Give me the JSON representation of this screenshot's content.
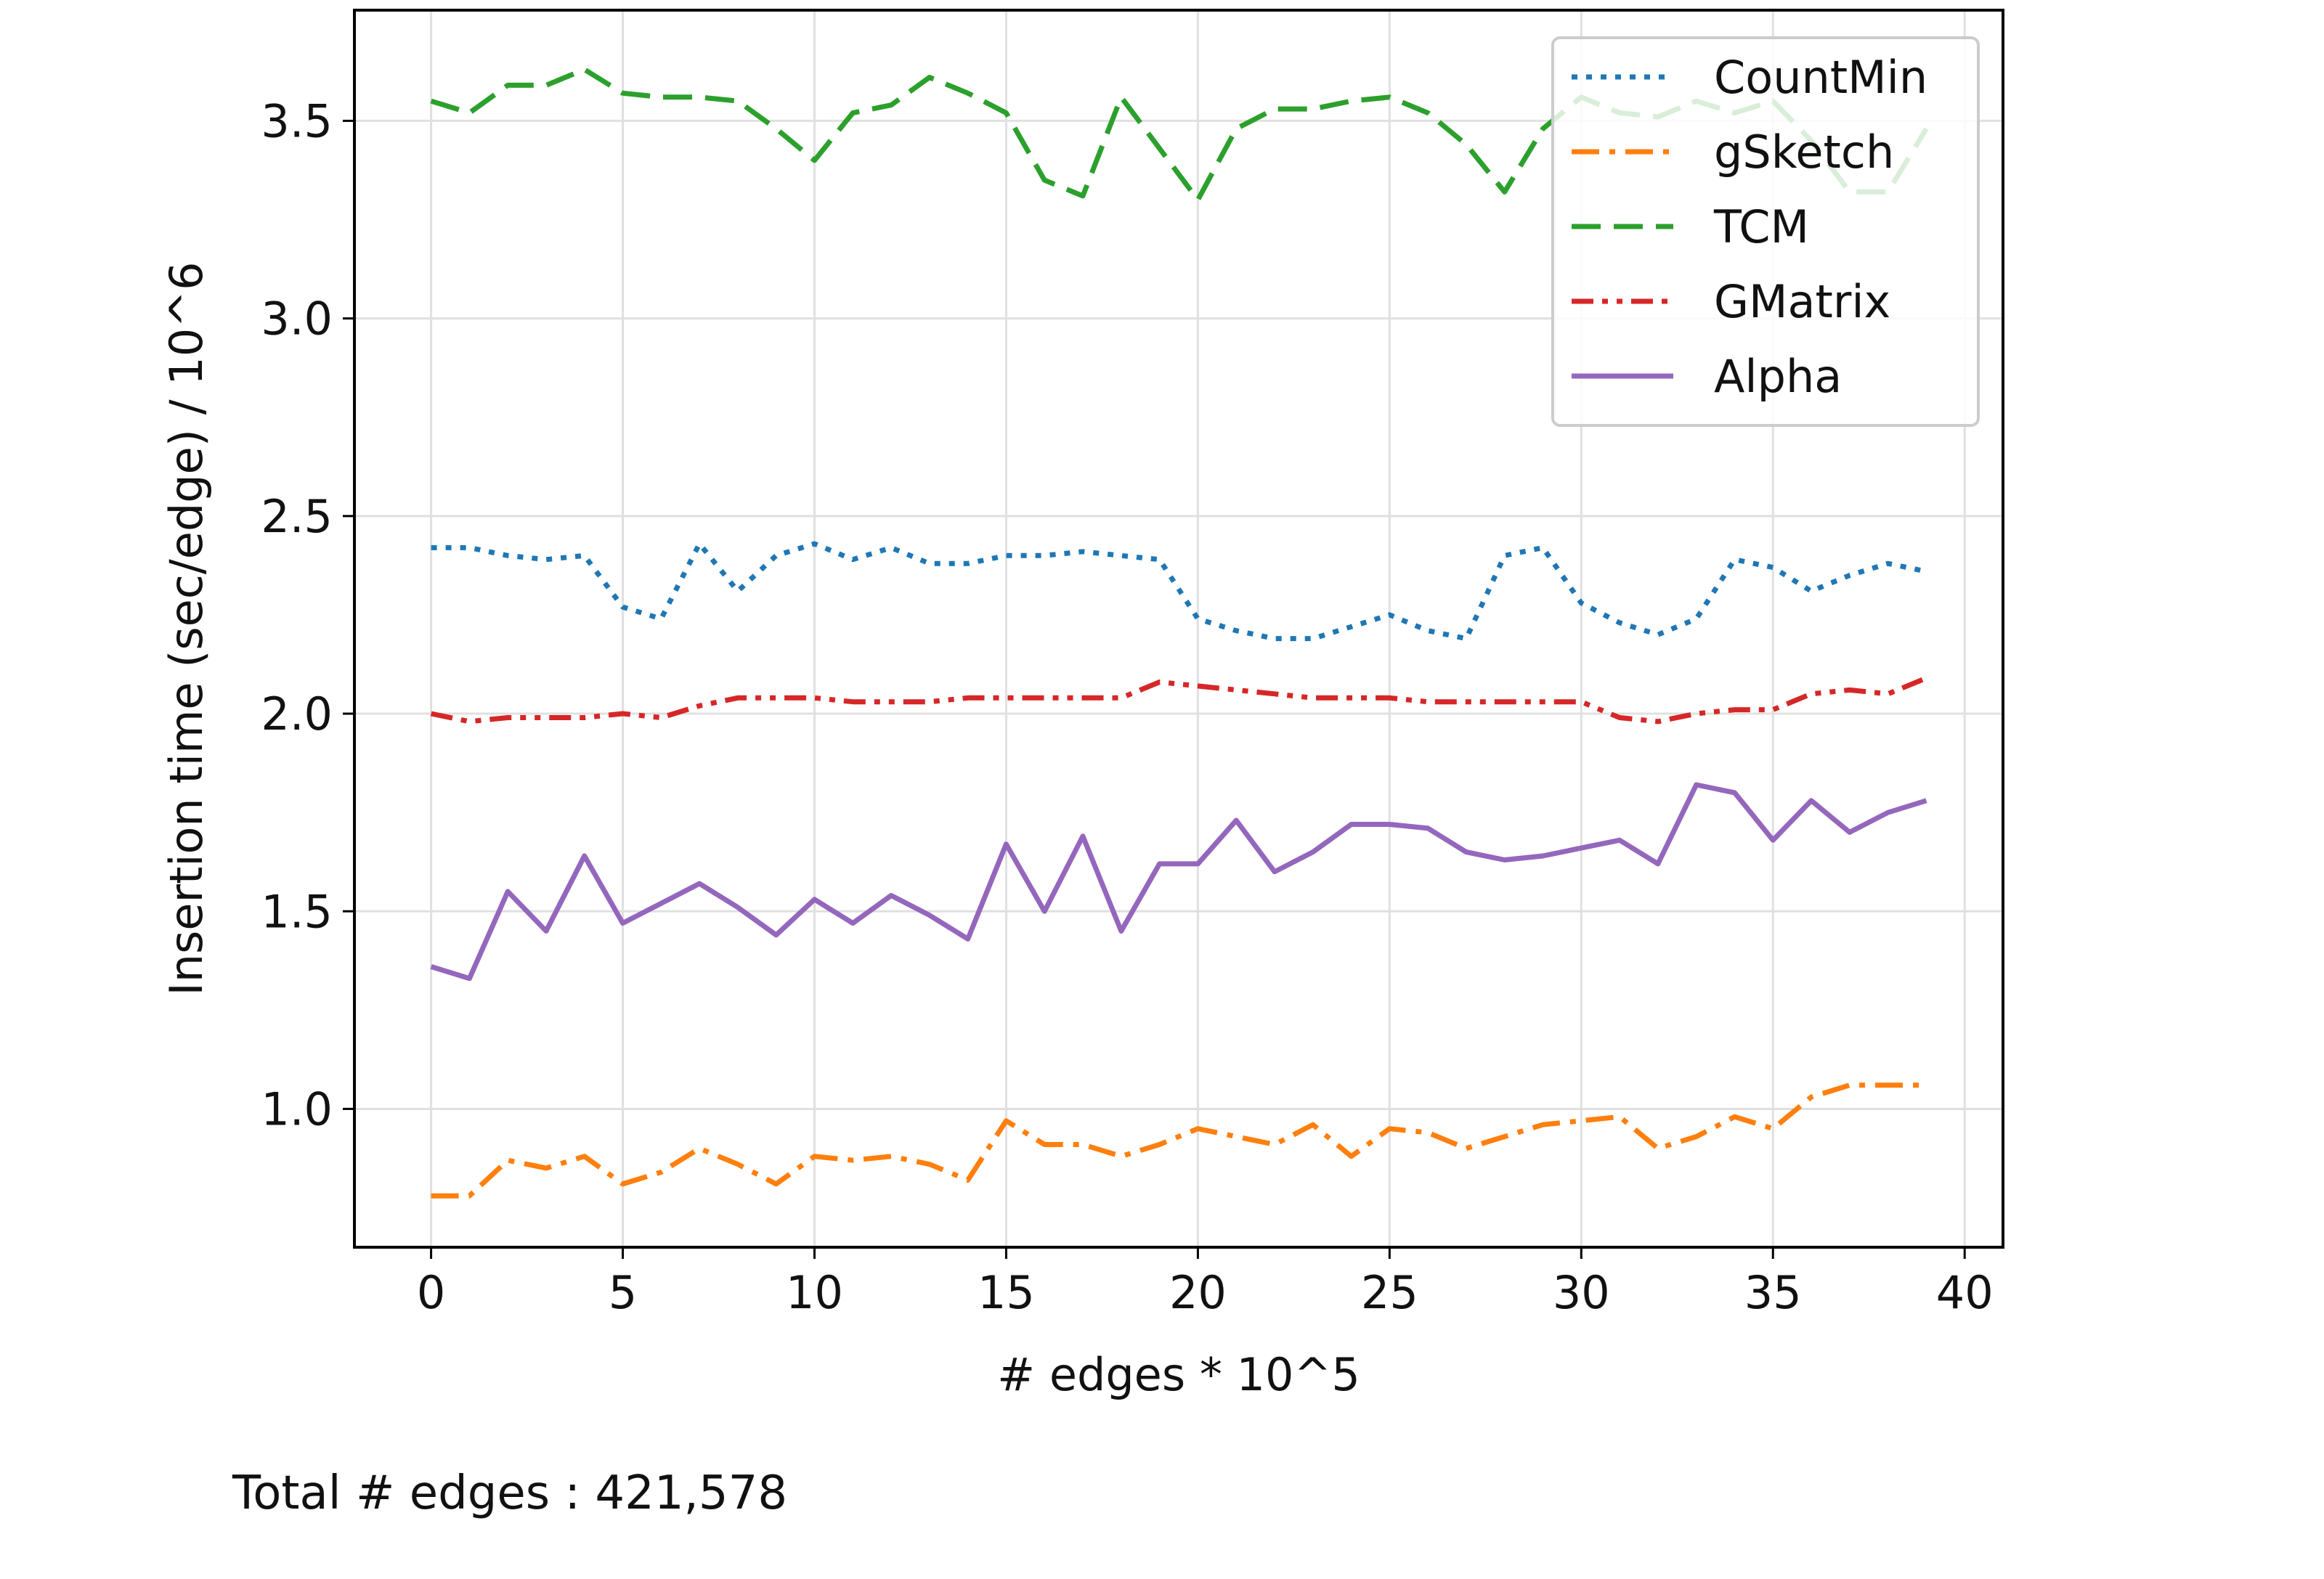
{
  "footer": {
    "total_edges_text": "Total # edges : 421,578"
  },
  "chart_data": {
    "type": "line",
    "title": "",
    "xlabel": "# edges * 10^5",
    "ylabel": "Insertion time (sec/edge) / 10^6",
    "xlim": [
      -2,
      41
    ],
    "ylim": [
      0.65,
      3.78
    ],
    "xticks": [
      0,
      5,
      10,
      15,
      20,
      25,
      30,
      35,
      40
    ],
    "xtick_labels": [
      "0",
      "5",
      "10",
      "15",
      "20",
      "25",
      "30",
      "35",
      "40"
    ],
    "yticks": [
      1.0,
      1.5,
      2.0,
      2.5,
      3.0,
      3.5
    ],
    "ytick_labels": [
      "1.0",
      "1.5",
      "2.0",
      "2.5",
      "3.0",
      "3.5"
    ],
    "grid": true,
    "legend_position": "top-right",
    "x": [
      0,
      1,
      2,
      3,
      4,
      5,
      6,
      7,
      8,
      9,
      10,
      11,
      12,
      13,
      14,
      15,
      16,
      17,
      18,
      19,
      20,
      21,
      22,
      23,
      24,
      25,
      26,
      27,
      28,
      29,
      30,
      31,
      32,
      33,
      34,
      35,
      36,
      37,
      38,
      39
    ],
    "series": [
      {
        "name": "CountMin",
        "color": "#1f77b4",
        "dash": "dotted",
        "values": [
          2.42,
          2.42,
          2.4,
          2.39,
          2.4,
          2.27,
          2.24,
          2.43,
          2.31,
          2.4,
          2.43,
          2.39,
          2.42,
          2.38,
          2.38,
          2.4,
          2.4,
          2.41,
          2.4,
          2.39,
          2.24,
          2.21,
          2.19,
          2.19,
          2.22,
          2.25,
          2.21,
          2.19,
          2.4,
          2.42,
          2.28,
          2.23,
          2.2,
          2.24,
          2.39,
          2.37,
          2.31,
          2.35,
          2.38,
          2.36
        ]
      },
      {
        "name": "gSketch",
        "color": "#ff7f0e",
        "dash": "dashdot",
        "values": [
          0.78,
          0.78,
          0.87,
          0.85,
          0.88,
          0.81,
          0.84,
          0.9,
          0.86,
          0.81,
          0.88,
          0.87,
          0.88,
          0.86,
          0.82,
          0.97,
          0.91,
          0.91,
          0.88,
          0.91,
          0.95,
          0.93,
          0.91,
          0.96,
          0.88,
          0.95,
          0.94,
          0.9,
          0.93,
          0.96,
          0.97,
          0.98,
          0.9,
          0.93,
          0.98,
          0.95,
          1.03,
          1.06,
          1.06,
          1.06
        ]
      },
      {
        "name": "TCM",
        "color": "#2ca02c",
        "dash": "dashed",
        "values": [
          3.55,
          3.52,
          3.59,
          3.59,
          3.63,
          3.57,
          3.56,
          3.56,
          3.55,
          3.48,
          3.4,
          3.52,
          3.54,
          3.61,
          3.57,
          3.52,
          3.35,
          3.31,
          3.56,
          3.43,
          3.3,
          3.48,
          3.53,
          3.53,
          3.55,
          3.56,
          3.52,
          3.44,
          3.32,
          3.48,
          3.56,
          3.52,
          3.51,
          3.55,
          3.52,
          3.55,
          3.45,
          3.32,
          3.32,
          3.48
        ]
      },
      {
        "name": "GMatrix",
        "color": "#d62728",
        "dash": "dashdotdotted",
        "values": [
          2.0,
          1.98,
          1.99,
          1.99,
          1.99,
          2.0,
          1.99,
          2.02,
          2.04,
          2.04,
          2.04,
          2.03,
          2.03,
          2.03,
          2.04,
          2.04,
          2.04,
          2.04,
          2.04,
          2.08,
          2.07,
          2.06,
          2.05,
          2.04,
          2.04,
          2.04,
          2.03,
          2.03,
          2.03,
          2.03,
          2.03,
          1.99,
          1.98,
          2.0,
          2.01,
          2.01,
          2.05,
          2.06,
          2.05,
          2.09
        ]
      },
      {
        "name": "Alpha",
        "color": "#9467bd",
        "dash": "solid",
        "values": [
          1.36,
          1.33,
          1.55,
          1.45,
          1.64,
          1.47,
          1.52,
          1.57,
          1.51,
          1.44,
          1.53,
          1.47,
          1.54,
          1.49,
          1.43,
          1.67,
          1.5,
          1.69,
          1.45,
          1.62,
          1.62,
          1.73,
          1.6,
          1.65,
          1.72,
          1.72,
          1.71,
          1.65,
          1.63,
          1.64,
          1.66,
          1.68,
          1.62,
          1.82,
          1.8,
          1.68,
          1.78,
          1.7,
          1.75,
          1.78
        ]
      }
    ]
  }
}
